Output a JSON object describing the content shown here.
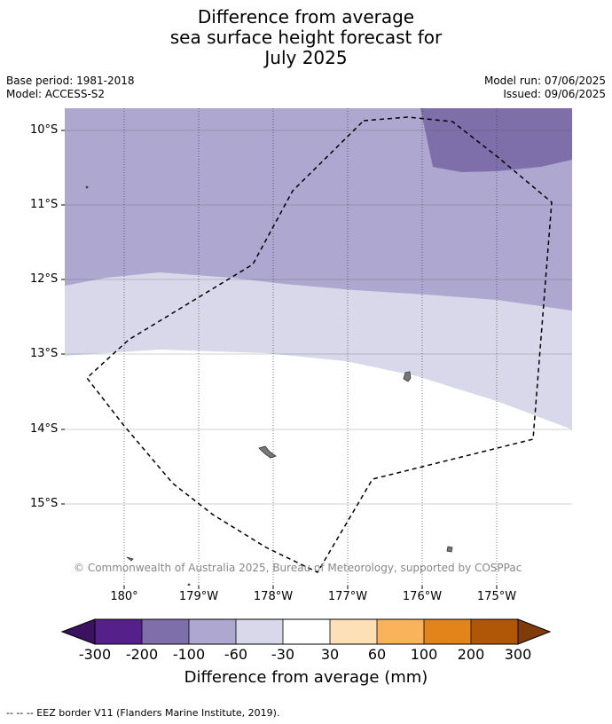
{
  "title": {
    "line1": "Difference from average",
    "line2": "sea surface height forecast for",
    "line3": "July 2025"
  },
  "meta": {
    "base_period": "Base period: 1981-2018",
    "model": "Model: ACCESS-S2",
    "model_run": "Model run: 07/06/2025",
    "issued": "Issued: 09/06/2025"
  },
  "latitude_labels": [
    "10°S",
    "11°S",
    "12°S",
    "13°S",
    "14°S",
    "15°S"
  ],
  "longitude_labels": [
    "180°",
    "179°W",
    "178°W",
    "177°W",
    "176°W",
    "175°W"
  ],
  "copyright": "© Commonwealth of Australia 2025, Bureau of Meteorology, supported by COSPPac",
  "colorbar": {
    "ticks": [
      "-300",
      "-200",
      "-100",
      "-60",
      "-30",
      "30",
      "60",
      "100",
      "200",
      "300"
    ],
    "colors": [
      "#3b1260",
      "#56208a",
      "#7e6fab",
      "#aea7cf",
      "#d8d8ea",
      "#ffffff",
      "#fde0b6",
      "#f9b45b",
      "#e3841a",
      "#b05707",
      "#7f3b08"
    ],
    "title": "Difference from average (mm)"
  },
  "footer": "--  --  -- EEZ border V11 (Flanders Marine Institute, 2019)."
}
